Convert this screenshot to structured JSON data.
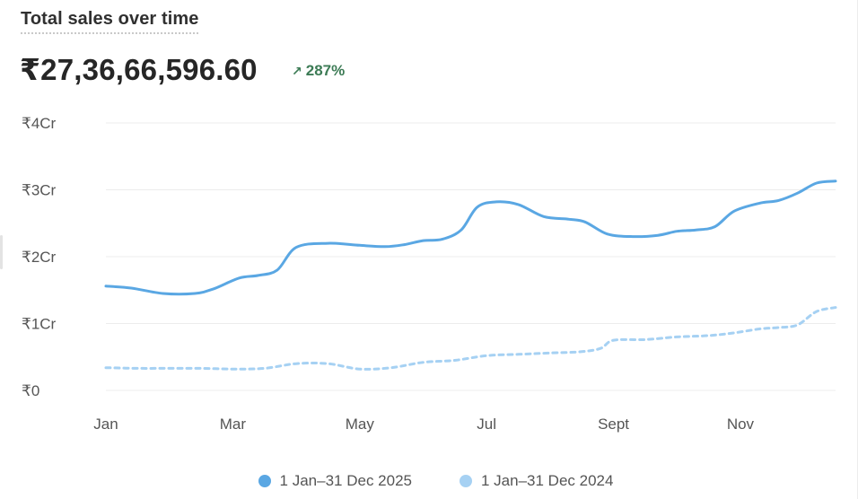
{
  "card": {
    "title": "Total sales over time",
    "total_value": "₹27,36,66,596.60",
    "change_arrow": "↗",
    "change_percent": "287%",
    "change_color": "#3c7b55"
  },
  "chart_data": {
    "type": "line",
    "title": "Total sales over time",
    "xlabel": "",
    "ylabel": "",
    "ylim": [
      0,
      4
    ],
    "y_unit": "Cr",
    "y_ticks": [
      {
        "value": 0,
        "label": "₹0"
      },
      {
        "value": 1,
        "label": "₹1Cr"
      },
      {
        "value": 2,
        "label": "₹2Cr"
      },
      {
        "value": 3,
        "label": "₹3Cr"
      },
      {
        "value": 4,
        "label": "₹4Cr"
      }
    ],
    "x_domain": [
      0,
      11.5
    ],
    "x_ticks": [
      {
        "value": 0,
        "label": "Jan"
      },
      {
        "value": 2,
        "label": "Mar"
      },
      {
        "value": 4,
        "label": "May"
      },
      {
        "value": 6,
        "label": "Jul"
      },
      {
        "value": 8,
        "label": "Sept"
      },
      {
        "value": 10,
        "label": "Nov"
      }
    ],
    "grid": true,
    "legend_position": "bottom-center",
    "series": [
      {
        "name": "1 Jan–31 Dec 2025",
        "color": "#5aa7e3",
        "dashed": false,
        "x": [
          0,
          0.4,
          0.9,
          1.4,
          1.7,
          2.1,
          2.4,
          2.7,
          3.0,
          3.5,
          4.0,
          4.4,
          4.7,
          5.0,
          5.3,
          5.6,
          5.85,
          6.15,
          6.5,
          6.9,
          7.3,
          7.55,
          7.9,
          8.3,
          8.7,
          9.0,
          9.3,
          9.6,
          9.9,
          10.3,
          10.6,
          10.9,
          11.2,
          11.5
        ],
        "y": [
          1.56,
          1.53,
          1.45,
          1.45,
          1.52,
          1.68,
          1.72,
          1.8,
          2.14,
          2.2,
          2.17,
          2.15,
          2.18,
          2.24,
          2.26,
          2.4,
          2.74,
          2.82,
          2.78,
          2.6,
          2.56,
          2.52,
          2.34,
          2.3,
          2.32,
          2.38,
          2.4,
          2.45,
          2.68,
          2.8,
          2.84,
          2.95,
          3.1,
          3.13
        ]
      },
      {
        "name": "1 Jan–31 Dec 2024",
        "color": "#a6d1f3",
        "dashed": true,
        "x": [
          0,
          0.5,
          1.0,
          1.5,
          2.0,
          2.5,
          3.0,
          3.5,
          4.0,
          4.5,
          5.0,
          5.5,
          6.0,
          6.5,
          7.0,
          7.5,
          7.8,
          8.0,
          8.5,
          9.0,
          9.5,
          9.9,
          10.3,
          10.6,
          10.9,
          11.2,
          11.5
        ],
        "y": [
          0.34,
          0.33,
          0.33,
          0.33,
          0.32,
          0.33,
          0.4,
          0.4,
          0.32,
          0.34,
          0.42,
          0.45,
          0.52,
          0.54,
          0.56,
          0.58,
          0.63,
          0.75,
          0.76,
          0.8,
          0.82,
          0.86,
          0.92,
          0.94,
          0.98,
          1.18,
          1.24
        ]
      }
    ]
  }
}
